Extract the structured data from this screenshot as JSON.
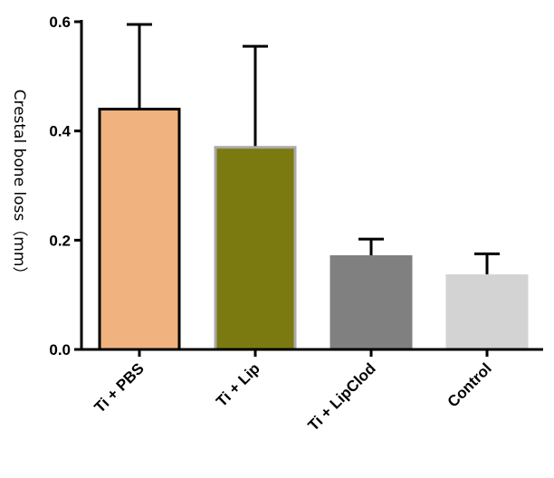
{
  "chart_data": {
    "type": "bar",
    "categories": [
      "Ti + PBS",
      "Ti + Lip",
      "Ti + LipClod",
      "Control"
    ],
    "values": [
      0.44,
      0.37,
      0.17,
      0.135
    ],
    "errors": [
      0.155,
      0.185,
      0.032,
      0.04
    ],
    "colors": [
      "#f0b27e",
      "#7a7a10",
      "#808080",
      "#d3d3d3"
    ],
    "edge_colors": [
      "#000000",
      "#a9a9a9",
      "#808080",
      "#d3d3d3"
    ],
    "ylabel": "Crestal bone loss（mm）",
    "ylim": [
      0,
      0.6
    ],
    "yticks": [
      0.0,
      0.2,
      0.4,
      0.6
    ],
    "ytick_labels": [
      "0.0",
      "0.2",
      "0.4",
      "0.6"
    ],
    "grid": false,
    "legend": "none"
  }
}
